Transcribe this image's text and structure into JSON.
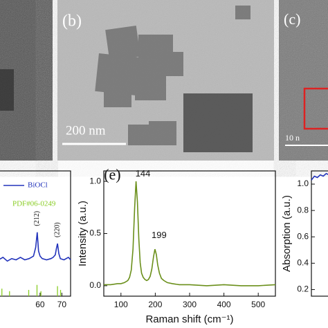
{
  "images": [
    {
      "label": "(b)",
      "scale_bar": "200 nm"
    },
    {
      "label": "(c)",
      "scale_bar": "10 n"
    }
  ],
  "chart_data": [
    {
      "type": "line",
      "series": [
        {
          "name": "BiOCl",
          "color": "#2233bb",
          "x": [
            41,
            43,
            45,
            47,
            49,
            51,
            53,
            55,
            56,
            57,
            58,
            58.7,
            59.3,
            60,
            61,
            63,
            65,
            66,
            67,
            67.5,
            68,
            68.6,
            69.3,
            71,
            73,
            74
          ],
          "values": [
            2.9,
            3.1,
            2.8,
            3.0,
            2.9,
            3.1,
            2.9,
            3.0,
            3.1,
            3.2,
            3.9,
            5.1,
            3.6,
            3.2,
            3.0,
            2.9,
            3.0,
            3.1,
            3.3,
            3.8,
            4.2,
            3.4,
            3.0,
            2.9,
            3.1,
            2.9
          ]
        }
      ],
      "reference": {
        "name": "PDF#06-0249",
        "color": "#88cc22",
        "x": [
          42.5,
          46,
          54.8,
          58.6,
          60.4,
          68,
          69.4
        ],
        "values": [
          0.6,
          0.4,
          0.5,
          0.9,
          0.4,
          0.8,
          0.5
        ]
      },
      "annotations": [
        "(212)",
        "(220)"
      ],
      "xlim": [
        41,
        74
      ],
      "xticks": [
        60,
        70
      ],
      "ylim": [
        0,
        10
      ]
    },
    {
      "type": "line",
      "annotations": [
        "(e)",
        "144",
        "199"
      ],
      "x_label": "Raman shift (cm⁻¹)",
      "y_label": "Intensity (a.u.)",
      "series": [
        {
          "color": "#6a8f1a",
          "x": [
            50,
            70,
            90,
            100,
            110,
            120,
            125,
            130,
            135,
            140,
            144,
            148,
            152,
            156,
            160,
            165,
            170,
            175,
            180,
            185,
            190,
            195,
            199,
            203,
            207,
            212,
            218,
            225,
            235,
            250,
            270,
            300,
            350,
            400,
            450,
            500,
            550
          ],
          "values": [
            0.01,
            0.01,
            0.02,
            0.02,
            0.03,
            0.05,
            0.08,
            0.15,
            0.35,
            0.75,
            1.0,
            0.8,
            0.45,
            0.22,
            0.12,
            0.08,
            0.06,
            0.05,
            0.06,
            0.09,
            0.16,
            0.28,
            0.35,
            0.3,
            0.2,
            0.12,
            0.07,
            0.05,
            0.03,
            0.02,
            0.01,
            0.01,
            0.0,
            0.01,
            0.0,
            0.0,
            0.01
          ]
        }
      ],
      "xlim": [
        50,
        550
      ],
      "xticks": [
        100,
        200,
        300,
        400,
        500
      ],
      "ylim": [
        -0.1,
        1.1
      ],
      "yticks": [
        {
          "value": 0,
          "label": "0.0"
        },
        0.5,
        {
          "value": 1,
          "label": "1.0"
        }
      ]
    },
    {
      "type": "line",
      "y_label": "Absorption (a.u.)",
      "series": [
        {
          "color": "#2233bb",
          "values": [
            1.03,
            1.06,
            1.05,
            1.07,
            1.06,
            1.08,
            1.07,
            1.09
          ]
        }
      ],
      "ylim": [
        0.15,
        1.1
      ],
      "yticks": [
        0.2,
        0.4,
        0.6,
        0.8,
        {
          "value": 1,
          "label": "1.0"
        }
      ]
    }
  ]
}
